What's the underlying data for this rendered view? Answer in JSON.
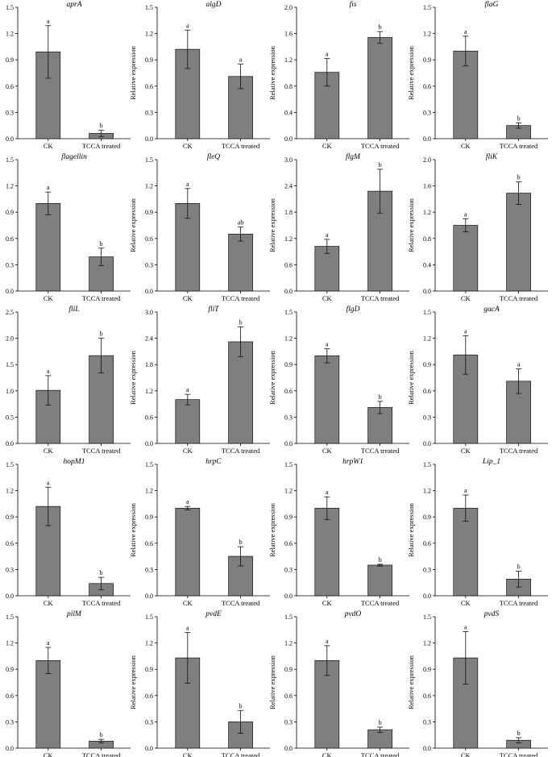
{
  "common": {
    "categories": [
      "CK",
      "TCCA treated"
    ],
    "ylabel": "Relative expression"
  },
  "chart_data": [
    {
      "type": "bar",
      "title": "aprA",
      "categories": [
        "CK",
        "TCCA treated"
      ],
      "ylabel": "Relative expression",
      "ylim": [
        0,
        1.5
      ],
      "yticks": [
        0.0,
        0.3,
        0.6,
        0.9,
        1.2,
        1.5
      ],
      "values": [
        0.99,
        0.06
      ],
      "errors": [
        0.3,
        0.035
      ],
      "labels": [
        "a",
        "b"
      ]
    },
    {
      "type": "bar",
      "title": "algD",
      "categories": [
        "CK",
        "TCCA treated"
      ],
      "ylabel": "Relative expression",
      "ylim": [
        0,
        1.5
      ],
      "yticks": [
        0.0,
        0.3,
        0.6,
        0.9,
        1.2,
        1.5
      ],
      "values": [
        1.02,
        0.71
      ],
      "errors": [
        0.22,
        0.14
      ],
      "labels": [
        "a",
        "a"
      ]
    },
    {
      "type": "bar",
      "title": "fis",
      "categories": [
        "CK",
        "TCCA treated"
      ],
      "ylabel": "Relative expression",
      "ylim": [
        0,
        2.0
      ],
      "yticks": [
        0.0,
        0.4,
        0.8,
        1.2,
        1.6,
        2.0
      ],
      "values": [
        1.01,
        1.54
      ],
      "errors": [
        0.21,
        0.09
      ],
      "labels": [
        "a",
        "b"
      ]
    },
    {
      "type": "bar",
      "title": "flaG",
      "categories": [
        "CK",
        "TCCA treated"
      ],
      "ylabel": "Relative expression",
      "ylim": [
        0,
        1.5
      ],
      "yticks": [
        0.0,
        0.3,
        0.6,
        0.9,
        1.2,
        1.5
      ],
      "values": [
        1.0,
        0.15
      ],
      "errors": [
        0.17,
        0.03
      ],
      "labels": [
        "a",
        "b"
      ]
    },
    {
      "type": "bar",
      "title": "flagellin",
      "categories": [
        "CK",
        "TCCA treated"
      ],
      "ylabel": "Relative expression",
      "ylim": [
        0,
        1.5
      ],
      "yticks": [
        0.0,
        0.3,
        0.6,
        0.9,
        1.2,
        1.5
      ],
      "values": [
        1.0,
        0.39
      ],
      "errors": [
        0.13,
        0.1
      ],
      "labels": [
        "a",
        "b"
      ]
    },
    {
      "type": "bar",
      "title": "fleQ",
      "categories": [
        "CK",
        "TCCA treated"
      ],
      "ylabel": "Relative expression",
      "ylim": [
        0,
        1.5
      ],
      "yticks": [
        0.0,
        0.3,
        0.6,
        0.9,
        1.2,
        1.5
      ],
      "values": [
        1.0,
        0.65
      ],
      "errors": [
        0.17,
        0.08
      ],
      "labels": [
        "a",
        "ab"
      ]
    },
    {
      "type": "bar",
      "title": "flgM",
      "categories": [
        "CK",
        "TCCA treated"
      ],
      "ylabel": "Relative expression",
      "ylim": [
        0,
        3.0
      ],
      "yticks": [
        0.0,
        0.6,
        1.2,
        1.8,
        2.4,
        3.0
      ],
      "values": [
        1.02,
        2.28
      ],
      "errors": [
        0.16,
        0.5
      ],
      "labels": [
        "a",
        "b"
      ]
    },
    {
      "type": "bar",
      "title": "fliK",
      "categories": [
        "CK",
        "TCCA treated"
      ],
      "ylabel": "Relative expression",
      "ylim": [
        0,
        2.0
      ],
      "yticks": [
        0.0,
        0.4,
        0.8,
        1.2,
        1.6,
        2.0
      ],
      "values": [
        1.0,
        1.49
      ],
      "errors": [
        0.1,
        0.17
      ],
      "labels": [
        "a",
        "b"
      ]
    },
    {
      "type": "bar",
      "title": "fliL",
      "categories": [
        "CK",
        "TCCA treated"
      ],
      "ylabel": "Relative expression",
      "ylim": [
        0,
        2.5
      ],
      "yticks": [
        0.0,
        0.5,
        1.0,
        1.5,
        2.0,
        2.5
      ],
      "values": [
        1.01,
        1.67
      ],
      "errors": [
        0.28,
        0.33
      ],
      "labels": [
        "a",
        "b"
      ]
    },
    {
      "type": "bar",
      "title": "fliT",
      "categories": [
        "CK",
        "TCCA treated"
      ],
      "ylabel": "Relative expression",
      "ylim": [
        0,
        3.0
      ],
      "yticks": [
        0.0,
        0.6,
        1.2,
        1.8,
        2.4,
        3.0
      ],
      "values": [
        1.0,
        2.32
      ],
      "errors": [
        0.12,
        0.34
      ],
      "labels": [
        "a",
        "b"
      ]
    },
    {
      "type": "bar",
      "title": "flgD",
      "categories": [
        "CK",
        "TCCA treated"
      ],
      "ylabel": "Relative expression",
      "ylim": [
        0,
        1.5
      ],
      "yticks": [
        0.0,
        0.3,
        0.6,
        0.9,
        1.2,
        1.5
      ],
      "values": [
        1.0,
        0.41
      ],
      "errors": [
        0.08,
        0.07
      ],
      "labels": [
        "a",
        "b"
      ]
    },
    {
      "type": "bar",
      "title": "gacA",
      "categories": [
        "CK",
        "TCCA treated"
      ],
      "ylabel": "Relative expression",
      "ylim": [
        0,
        1.5
      ],
      "yticks": [
        0.0,
        0.3,
        0.6,
        0.9,
        1.2,
        1.5
      ],
      "values": [
        1.01,
        0.71
      ],
      "errors": [
        0.22,
        0.14
      ],
      "labels": [
        "a",
        "a"
      ]
    },
    {
      "type": "bar",
      "title": "hopM1",
      "categories": [
        "CK",
        "TCCA treated"
      ],
      "ylabel": "Relative expression",
      "ylim": [
        0,
        1.5
      ],
      "yticks": [
        0.0,
        0.3,
        0.6,
        0.9,
        1.2,
        1.5
      ],
      "values": [
        1.02,
        0.14
      ],
      "errors": [
        0.22,
        0.07
      ],
      "labels": [
        "a",
        "b"
      ]
    },
    {
      "type": "bar",
      "title": "hrpC",
      "categories": [
        "CK",
        "TCCA treated"
      ],
      "ylabel": "Relative expression",
      "ylim": [
        0,
        1.5
      ],
      "yticks": [
        0.0,
        0.3,
        0.6,
        0.9,
        1.2,
        1.5
      ],
      "values": [
        1.0,
        0.45
      ],
      "errors": [
        0.02,
        0.11
      ],
      "labels": [
        "a",
        "b"
      ]
    },
    {
      "type": "bar",
      "title": "hrpW1",
      "categories": [
        "CK",
        "TCCA treated"
      ],
      "ylabel": "Relative expression",
      "ylim": [
        0,
        1.5
      ],
      "yticks": [
        0.0,
        0.3,
        0.6,
        0.9,
        1.2,
        1.5
      ],
      "values": [
        1.0,
        0.35
      ],
      "errors": [
        0.13,
        0.01
      ],
      "labels": [
        "a",
        "b"
      ]
    },
    {
      "type": "bar",
      "title": "Lip_1",
      "categories": [
        "CK",
        "TCCA treated"
      ],
      "ylabel": "Relative expression",
      "ylim": [
        0,
        1.5
      ],
      "yticks": [
        0.0,
        0.3,
        0.6,
        0.9,
        1.2,
        1.5
      ],
      "values": [
        1.0,
        0.19
      ],
      "errors": [
        0.15,
        0.09
      ],
      "labels": [
        "a",
        "b"
      ]
    },
    {
      "type": "bar",
      "title": "pilM",
      "categories": [
        "CK",
        "TCCA treated"
      ],
      "ylabel": "Relative expression",
      "ylim": [
        0,
        1.5
      ],
      "yticks": [
        0.0,
        0.3,
        0.6,
        0.9,
        1.2,
        1.5
      ],
      "values": [
        1.0,
        0.08
      ],
      "errors": [
        0.15,
        0.02
      ],
      "labels": [
        "a",
        "b"
      ]
    },
    {
      "type": "bar",
      "title": "pvdE",
      "categories": [
        "CK",
        "TCCA treated"
      ],
      "ylabel": "Relative expression",
      "ylim": [
        0,
        1.5
      ],
      "yticks": [
        0.0,
        0.3,
        0.6,
        0.9,
        1.2,
        1.5
      ],
      "values": [
        1.03,
        0.3
      ],
      "errors": [
        0.29,
        0.13
      ],
      "labels": [
        "a",
        "b"
      ]
    },
    {
      "type": "bar",
      "title": "pvdO",
      "categories": [
        "CK",
        "TCCA treated"
      ],
      "ylabel": "Relative expression",
      "ylim": [
        0,
        1.5
      ],
      "yticks": [
        0.0,
        0.3,
        0.6,
        0.9,
        1.2,
        1.5
      ],
      "values": [
        1.0,
        0.21
      ],
      "errors": [
        0.17,
        0.03
      ],
      "labels": [
        "a",
        "b"
      ]
    },
    {
      "type": "bar",
      "title": "pvdS",
      "categories": [
        "CK",
        "TCCA treated"
      ],
      "ylabel": "Relative expression",
      "ylim": [
        0,
        1.5
      ],
      "yticks": [
        0.0,
        0.3,
        0.6,
        0.9,
        1.2,
        1.5
      ],
      "values": [
        1.03,
        0.09
      ],
      "errors": [
        0.3,
        0.03
      ],
      "labels": [
        "a",
        "b"
      ]
    }
  ]
}
